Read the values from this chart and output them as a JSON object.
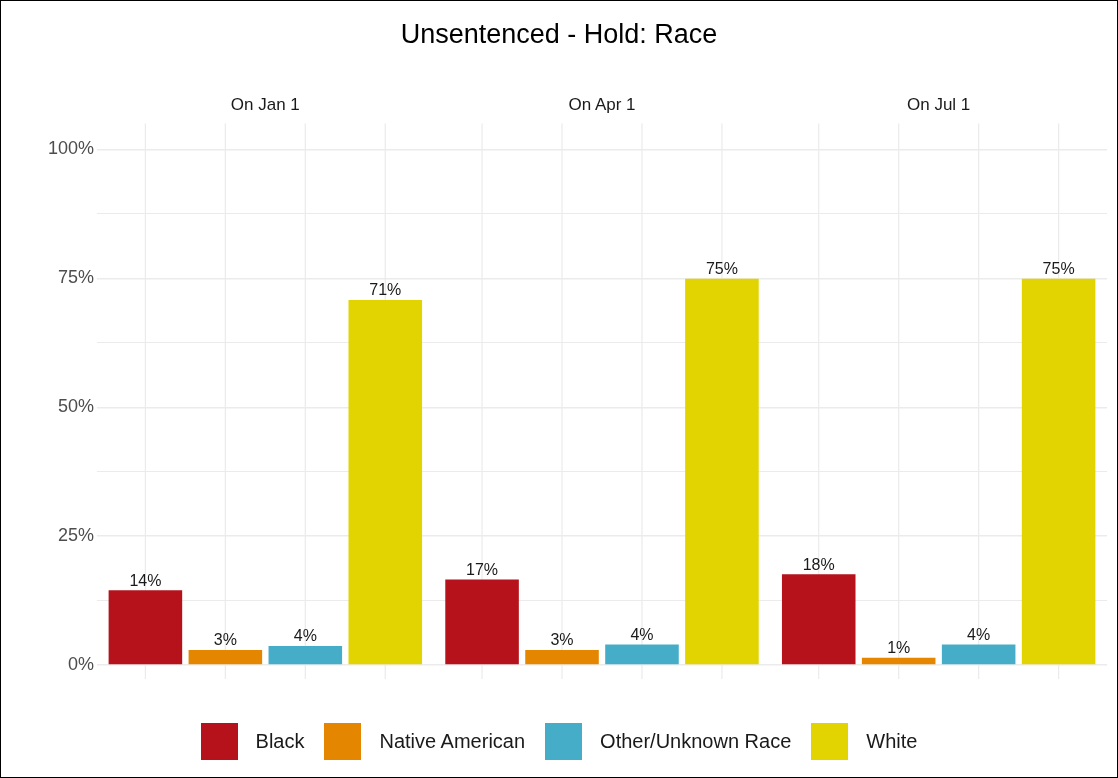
{
  "chart_data": {
    "type": "bar",
    "title": "Unsentenced - Hold: Race",
    "categories": [
      "On Jan 1",
      "On Apr 1",
      "On Jul 1"
    ],
    "series": [
      {
        "name": "Black",
        "color": "#b5121b",
        "values": [
          14.5,
          16.6,
          17.6
        ],
        "value_labels": [
          "14%",
          "17%",
          "18%"
        ]
      },
      {
        "name": "Native American",
        "color": "#e58600",
        "values": [
          2.9,
          2.9,
          1.4
        ],
        "value_labels": [
          "3%",
          "3%",
          "1%"
        ]
      },
      {
        "name": "Other/Unknown Race",
        "color": "#46adc8",
        "values": [
          3.7,
          4.0,
          4.0
        ],
        "value_labels": [
          "4%",
          "4%",
          "4%"
        ]
      },
      {
        "name": "White",
        "color": "#e1d400",
        "values": [
          70.8,
          74.9,
          74.9
        ],
        "value_labels": [
          "71%",
          "75%",
          "75%"
        ]
      }
    ],
    "ylim": [
      0,
      100
    ],
    "yticks": [
      {
        "value": 0,
        "label": "0%"
      },
      {
        "value": 12.5,
        "label": null
      },
      {
        "value": 25,
        "label": "25%"
      },
      {
        "value": 37.5,
        "label": null
      },
      {
        "value": 50,
        "label": "50%"
      },
      {
        "value": 62.5,
        "label": null
      },
      {
        "value": 75,
        "label": "75%"
      },
      {
        "value": 87.5,
        "label": null
      },
      {
        "value": 100,
        "label": "100%"
      }
    ],
    "grid": true,
    "legend": "bottom"
  }
}
